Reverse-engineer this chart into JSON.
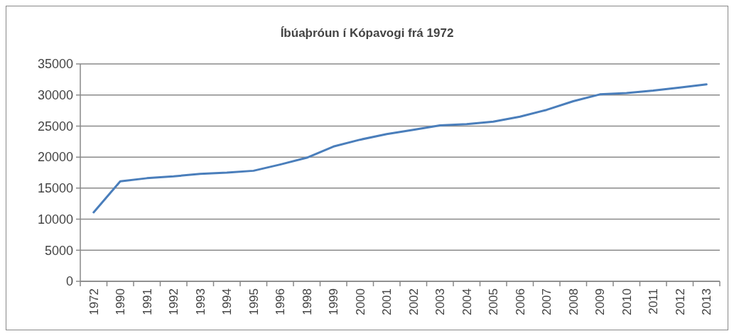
{
  "chart_data": {
    "type": "line",
    "title": "Íbúaþróun í Kópavogi frá 1972",
    "categories": [
      "1972",
      "1990",
      "1991",
      "1992",
      "1993",
      "1994",
      "1995",
      "1996",
      "1998",
      "1999",
      "2000",
      "2001",
      "2002",
      "2003",
      "2004",
      "2005",
      "2006",
      "2007",
      "2008",
      "2009",
      "2010",
      "2011",
      "2012",
      "2013"
    ],
    "series": [
      {
        "color": "#4a7ebb",
        "values": [
          11100,
          16100,
          16600,
          16900,
          17300,
          17500,
          17800,
          18800,
          19900,
          21700,
          22800,
          23700,
          24400,
          25100,
          25300,
          25700,
          26500,
          27600,
          29000,
          30100,
          30300,
          30700,
          31200,
          31700
        ]
      }
    ],
    "ylim": [
      0,
      35000
    ],
    "yticks": [
      0,
      5000,
      10000,
      15000,
      20000,
      25000,
      30000,
      35000
    ],
    "grid": "y",
    "marker": "none",
    "line_style": "solid"
  }
}
